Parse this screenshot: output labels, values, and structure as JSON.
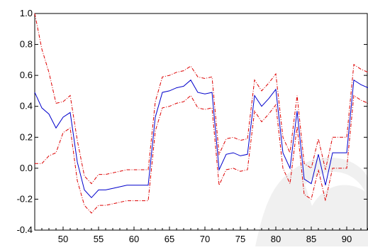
{
  "chart_data": {
    "type": "line",
    "xlim": [
      46,
      93
    ],
    "ylim": [
      -0.4,
      1.0
    ],
    "xticks": [
      50,
      55,
      60,
      65,
      70,
      75,
      80,
      85,
      90
    ],
    "xtick_labels": [
      "50",
      "55",
      "60",
      "65",
      "70",
      "75",
      "80",
      "85",
      "90"
    ],
    "yticks": [
      -0.4,
      -0.2,
      0.0,
      0.2,
      0.4,
      0.6,
      0.8,
      1.0
    ],
    "ytick_labels": [
      "-0.4",
      "-0.2",
      "0.0",
      "0.2",
      "0.4",
      "0.6",
      "0.8",
      "1.0"
    ],
    "grid": false,
    "x": [
      46,
      47,
      48,
      49,
      50,
      51,
      52,
      53,
      54,
      55,
      56,
      57,
      58,
      59,
      60,
      61,
      62,
      63,
      64,
      65,
      66,
      67,
      68,
      69,
      70,
      71,
      72,
      73,
      74,
      75,
      76,
      77,
      78,
      79,
      80,
      81,
      82,
      83,
      84,
      85,
      86,
      87,
      88,
      89,
      90,
      91,
      92,
      93
    ],
    "series": [
      {
        "style": "solid",
        "color": "#0000cc",
        "values": [
          0.49,
          0.39,
          0.35,
          0.26,
          0.33,
          0.36,
          0.04,
          -0.14,
          -0.19,
          -0.14,
          -0.14,
          -0.13,
          -0.12,
          -0.11,
          -0.11,
          -0.11,
          -0.11,
          0.33,
          0.49,
          0.5,
          0.52,
          0.53,
          0.57,
          0.49,
          0.48,
          0.49,
          -0.01,
          0.09,
          0.1,
          0.08,
          0.09,
          0.47,
          0.4,
          0.45,
          0.51,
          0.1,
          0.0,
          0.37,
          -0.07,
          -0.1,
          0.09,
          -0.11,
          0.1,
          0.1,
          0.1,
          0.57,
          0.54,
          0.52
        ]
      },
      {
        "style": "dashed",
        "color": "#dd0000",
        "values": [
          1.0,
          0.77,
          0.62,
          0.42,
          0.43,
          0.47,
          0.18,
          -0.05,
          -0.1,
          -0.04,
          -0.04,
          -0.03,
          -0.02,
          -0.01,
          -0.01,
          -0.01,
          -0.01,
          0.43,
          0.59,
          0.6,
          0.62,
          0.63,
          0.66,
          0.59,
          0.58,
          0.59,
          0.09,
          0.19,
          0.2,
          0.18,
          0.19,
          0.57,
          0.5,
          0.55,
          0.61,
          0.2,
          0.1,
          0.47,
          0.03,
          0.0,
          0.19,
          -0.01,
          0.2,
          0.2,
          0.2,
          0.67,
          0.64,
          0.62
        ]
      },
      {
        "style": "dashed",
        "color": "#dd0000",
        "values": [
          0.03,
          0.03,
          0.08,
          0.1,
          0.23,
          0.26,
          -0.08,
          -0.24,
          -0.29,
          -0.24,
          -0.24,
          -0.23,
          -0.22,
          -0.21,
          -0.21,
          -0.21,
          -0.21,
          0.24,
          0.39,
          0.4,
          0.42,
          0.43,
          0.47,
          0.39,
          0.38,
          0.39,
          -0.11,
          -0.01,
          0.0,
          -0.02,
          -0.01,
          0.37,
          0.3,
          0.35,
          0.41,
          0.0,
          -0.1,
          0.27,
          -0.17,
          -0.2,
          -0.01,
          -0.21,
          0.0,
          0.0,
          0.0,
          0.47,
          0.44,
          0.42
        ]
      }
    ]
  }
}
